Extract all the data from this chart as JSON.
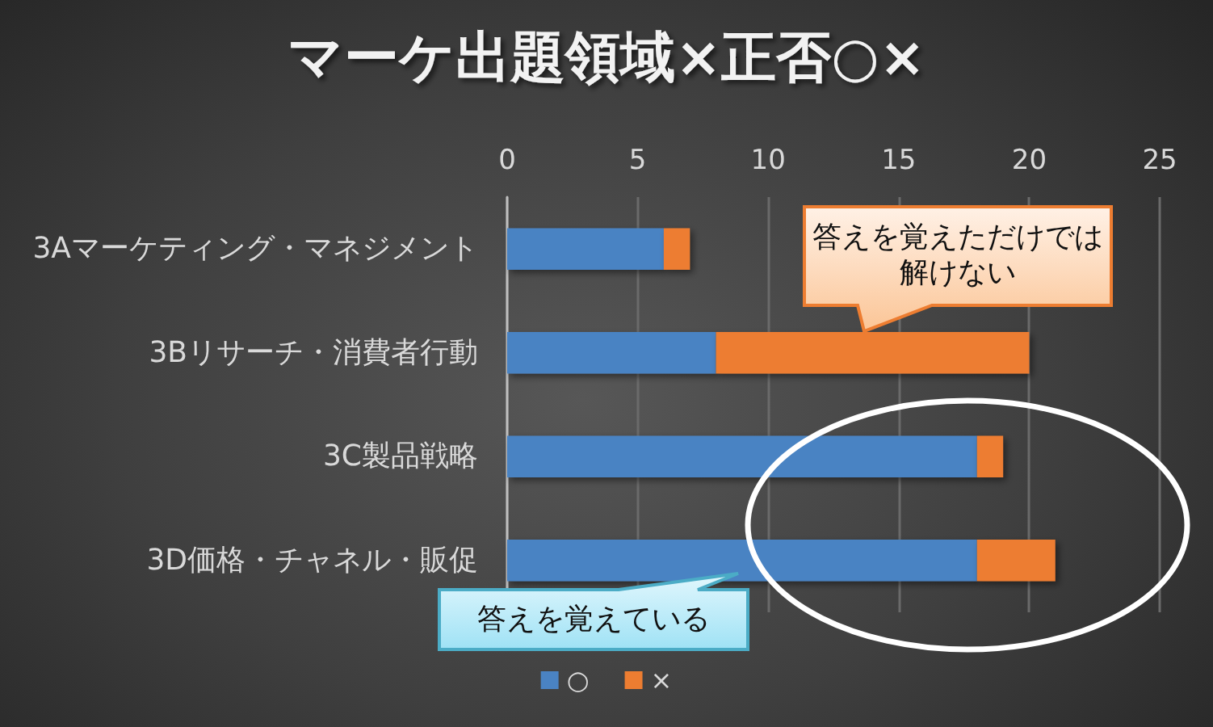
{
  "chart_data": {
    "type": "bar",
    "title": "マーケ出題領域×正否○×",
    "orientation": "horizontal",
    "stacked": true,
    "categories": [
      "3Aマーケティング・マネジメント",
      "3Bリサーチ・消費者行動",
      "3C製品戦略",
      "3D価格・チャネル・販促"
    ],
    "series": [
      {
        "name": "○",
        "color": "#4a83c3",
        "values": [
          6,
          8,
          18,
          18
        ]
      },
      {
        "name": "×",
        "color": "#ed7d31",
        "values": [
          1,
          12,
          1,
          3
        ]
      }
    ],
    "xlim": [
      0,
      25
    ],
    "xticks": [
      0,
      5,
      10,
      15,
      20,
      25
    ],
    "grid": "x",
    "legend": "bottom",
    "annotations": [
      "答えを覚えただけでは解けない",
      "答えを覚えている"
    ]
  }
}
